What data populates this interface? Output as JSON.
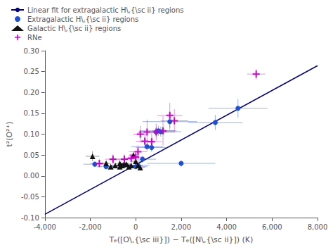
{
  "chart_data": {
    "type": "scatter",
    "xlabel": "Tₑ([O\\,{\\sc iii}]) − Tₑ([N\\,{\\sc ii}]) (K)",
    "ylabel": "t²(O²⁺)",
    "xlim": [
      -4000,
      8000
    ],
    "ylim": [
      -0.1,
      0.3
    ],
    "xticks": [
      {
        "value": -4000,
        "label": "-4,000"
      },
      {
        "value": -2000,
        "label": "-2,000"
      },
      0,
      {
        "value": 2000,
        "label": "2,000"
      },
      {
        "value": 4000,
        "label": "4,000"
      },
      {
        "value": 6000,
        "label": "6,000"
      },
      {
        "value": 8000,
        "label": "8,000"
      }
    ],
    "yticks": [
      {
        "value": -0.1,
        "label": "-0.10"
      },
      -0.05,
      {
        "value": 0,
        "label": "0.00"
      },
      0.05,
      {
        "value": 0.1,
        "label": "0.10"
      },
      0.15,
      {
        "value": 0.2,
        "label": "0.20"
      },
      0.25,
      {
        "value": 0.3,
        "label": "0.30"
      }
    ],
    "grid": false,
    "legend": "upper left",
    "series": [
      {
        "name": "Linear fit for extragalactic H\\,{\\sc ii} regions",
        "type": "line",
        "line_style": "solid",
        "color": "#00008B",
        "x": [
          -4000,
          8000
        ],
        "values": [
          -0.0923,
          0.2641
        ]
      },
      {
        "name": "Extragalactic H\\,{\\sc ii} regions",
        "type": "scatter",
        "marker": "circle",
        "color": "#1c4fd6",
        "x": [
          -1800,
          -1300,
          -500,
          0,
          100,
          300,
          500,
          700,
          900,
          1000,
          1100,
          1500,
          2000,
          3500,
          4500
        ],
        "values": [
          0.028,
          0.022,
          0.025,
          0.022,
          0.025,
          0.04,
          0.07,
          0.068,
          0.105,
          0.108,
          0.106,
          0.13,
          0.03,
          0.128,
          0.162
        ],
        "xerr": [
          500,
          400,
          600,
          500,
          500,
          600,
          700,
          700,
          800,
          800,
          900,
          1200,
          1500,
          1200,
          1300
        ],
        "yerr": [
          0.005,
          0.004,
          0.005,
          0.004,
          0.005,
          0.008,
          0.01,
          0.01,
          0.012,
          0.012,
          0.012,
          0.02,
          0.008,
          0.018,
          0.022
        ]
      },
      {
        "name": "Galactic H\\,{\\sc ii} regions",
        "type": "scatter",
        "marker": "triangle",
        "color": "#111111",
        "x": [
          -1900,
          -1300,
          -1100,
          -900,
          -700,
          -700,
          -600,
          -500,
          -400,
          -300,
          -200,
          -100,
          0,
          100,
          200
        ],
        "values": [
          0.047,
          0.03,
          0.022,
          0.025,
          0.022,
          0.03,
          0.025,
          0.03,
          0.028,
          0.022,
          0.025,
          0.05,
          0.035,
          0.025,
          0.02
        ],
        "xerr": [
          300,
          200,
          200,
          200,
          200,
          200,
          200,
          200,
          200,
          200,
          200,
          200,
          200,
          200,
          200
        ],
        "yerr": [
          0.012,
          0.006,
          0.005,
          0.005,
          0.005,
          0.006,
          0.005,
          0.006,
          0.006,
          0.005,
          0.005,
          0.008,
          0.007,
          0.005,
          0.005
        ]
      },
      {
        "name": "RNe",
        "type": "scatter",
        "marker": "plus",
        "color": "#cc00cc",
        "x": [
          -1600,
          -1000,
          -500,
          -200,
          0,
          100,
          200,
          400,
          500,
          700,
          900,
          1200,
          1500,
          1700,
          5300
        ],
        "values": [
          0.03,
          0.04,
          0.04,
          0.042,
          0.045,
          0.058,
          0.1,
          0.083,
          0.105,
          0.082,
          0.105,
          0.108,
          0.145,
          0.132,
          0.244
        ],
        "xerr": [
          400,
          350,
          300,
          350,
          350,
          400,
          300,
          400,
          400,
          450,
          500,
          500,
          550,
          600,
          400
        ],
        "yerr": [
          0.01,
          0.012,
          0.012,
          0.012,
          0.012,
          0.015,
          0.02,
          0.018,
          0.03,
          0.022,
          0.02,
          0.035,
          0.03,
          0.028,
          0.012
        ]
      }
    ]
  }
}
